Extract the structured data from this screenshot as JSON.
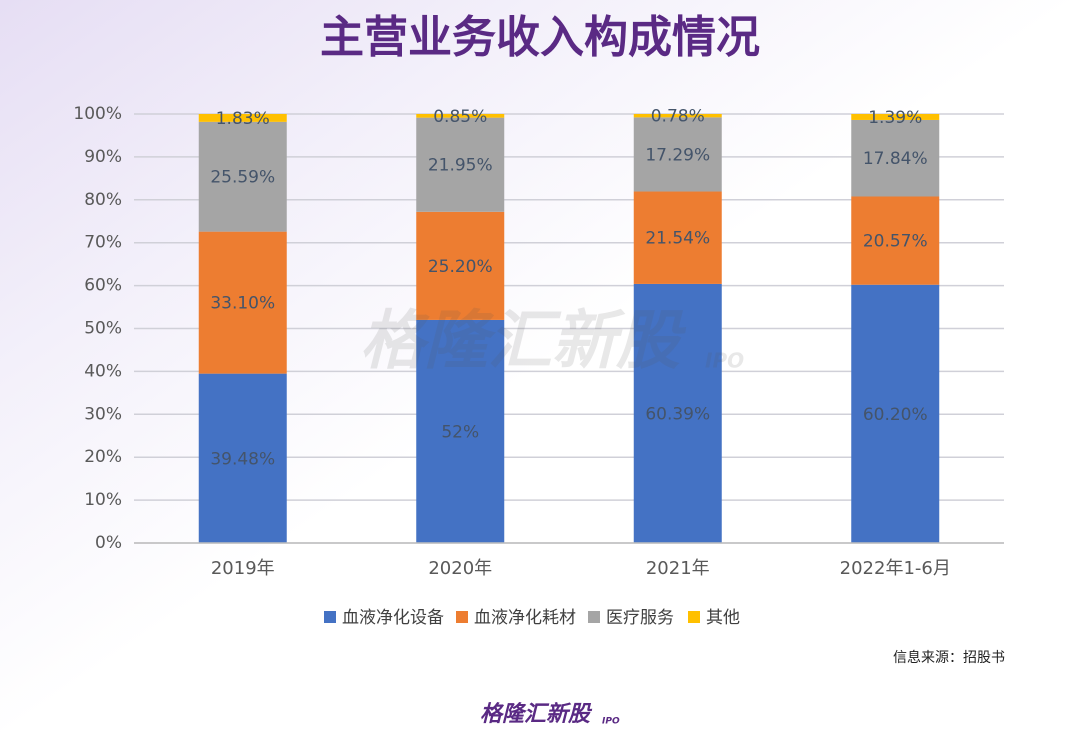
{
  "chart_data": {
    "type": "stacked_bar",
    "title": "主营业务收入构成情况",
    "categories": [
      "2019年",
      "2020年",
      "2021年",
      "2022年1-6月"
    ],
    "series": [
      {
        "name": "血液净化设备",
        "color": "#4472c4",
        "values": [
          39.48,
          52,
          60.39,
          60.2
        ],
        "value_labels": [
          "39.48%",
          "52%",
          "60.39%",
          "60.20%"
        ]
      },
      {
        "name": "血液净化耗材",
        "color": "#ed7d31",
        "values": [
          33.1,
          25.2,
          21.54,
          20.57
        ],
        "value_labels": [
          "33.10%",
          "25.20%",
          "21.54%",
          "20.57%"
        ]
      },
      {
        "name": "医疗服务",
        "color": "#a5a5a5",
        "values": [
          25.59,
          21.95,
          17.29,
          17.84
        ],
        "value_labels": [
          "25.59%",
          "21.95%",
          "17.29%",
          "17.84%"
        ]
      },
      {
        "name": "其他",
        "color": "#ffc000",
        "values": [
          1.83,
          0.85,
          0.78,
          1.39
        ],
        "value_labels": [
          "1.83%",
          "0.85%",
          "0.78%",
          "1.39%"
        ]
      }
    ],
    "ylim": [
      0,
      100
    ],
    "yticks": [
      {
        "value": 0,
        "label": "0%"
      },
      {
        "value": 10,
        "label": "10%"
      },
      {
        "value": 20,
        "label": "20%"
      },
      {
        "value": 30,
        "label": "30%"
      },
      {
        "value": 40,
        "label": "40%"
      },
      {
        "value": 50,
        "label": "50%"
      },
      {
        "value": 60,
        "label": "60%"
      },
      {
        "value": 70,
        "label": "70%"
      },
      {
        "value": 80,
        "label": "80%"
      },
      {
        "value": 90,
        "label": "90%"
      },
      {
        "value": 100,
        "label": "100%"
      }
    ],
    "grid": true,
    "legend": "bottom",
    "source": "信息来源：招股书",
    "watermark": "格隆汇新股",
    "watermark_sub": "IPO",
    "logo": "格隆汇新股",
    "logo_sub": "IPO"
  }
}
